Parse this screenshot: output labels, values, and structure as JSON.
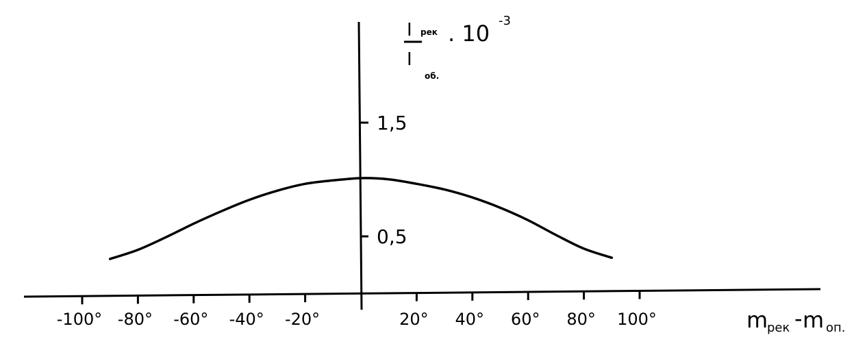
{
  "chart_data": {
    "type": "line",
    "title": "",
    "xlabel": {
      "left_main": "m",
      "left_sub": "рек",
      "dash": "-",
      "right_main": "m",
      "right_sub": "оп."
    },
    "ylabel": {
      "numerator_main": "I",
      "numerator_sub": "рек",
      "factor": ". 10",
      "factor_exp": "-3",
      "denominator_main": "I",
      "denominator_sub": "об."
    },
    "xlim": [
      -100,
      100
    ],
    "ylim": [
      0,
      1.5
    ],
    "x_ticks": [
      -100,
      -80,
      -60,
      -40,
      -20,
      20,
      40,
      60,
      80,
      100
    ],
    "x_tick_labels": [
      "-100°",
      "-80°",
      "-60°",
      "-40°",
      "-20°",
      "20°",
      "40°",
      "60°",
      "80°",
      "100°"
    ],
    "y_ticks": [
      1.5,
      0.5
    ],
    "y_tick_labels": [
      "1,5",
      "0,5"
    ],
    "grid": false,
    "series": [
      {
        "x": [
          -90,
          -80,
          -70,
          -60,
          -50,
          -40,
          -30,
          -20,
          -10,
          0,
          10,
          20,
          30,
          40,
          50,
          60,
          70,
          80,
          90
        ],
        "y": [
          0.32,
          0.4,
          0.51,
          0.63,
          0.74,
          0.84,
          0.92,
          0.98,
          1.01,
          1.03,
          1.02,
          0.98,
          0.93,
          0.86,
          0.77,
          0.66,
          0.53,
          0.41,
          0.33
        ]
      }
    ]
  }
}
